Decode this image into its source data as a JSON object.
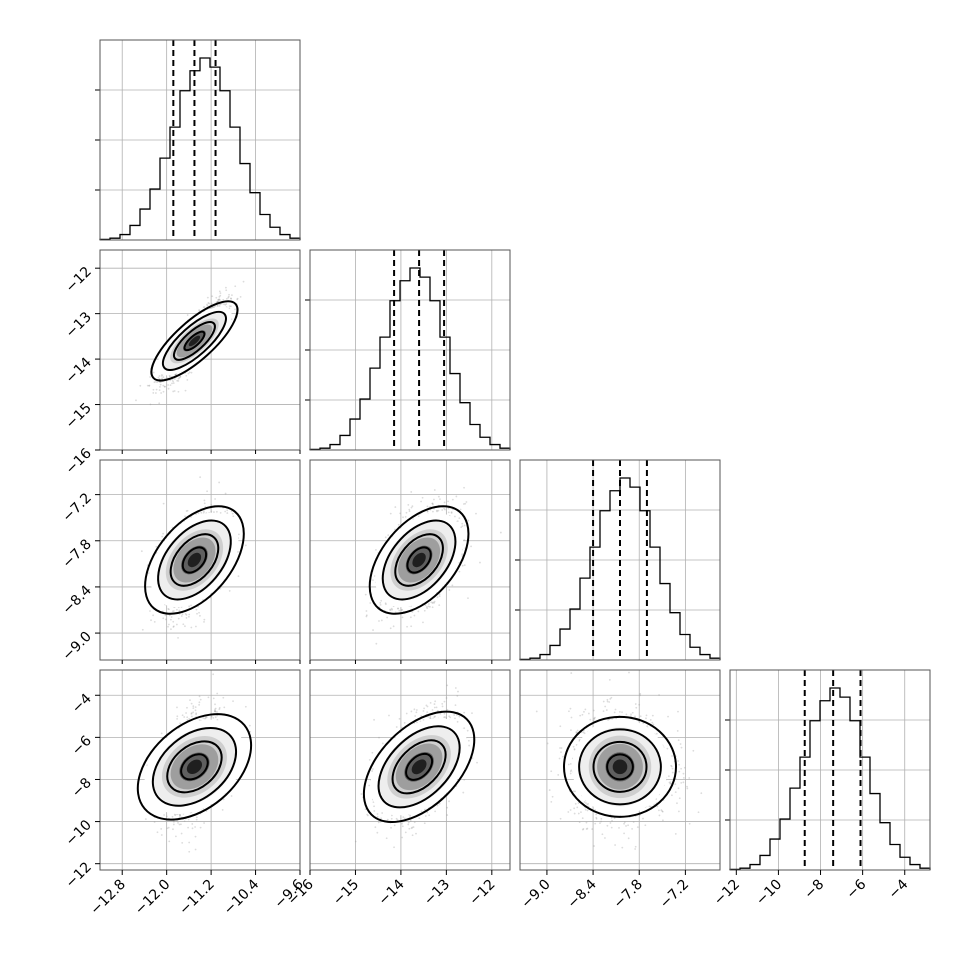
{
  "chart_data": {
    "type": "corner",
    "title": "",
    "parameters": [
      {
        "index": 0,
        "mean": -11.5,
        "sd": 0.28,
        "range": [
          -13.2,
          -9.6
        ],
        "ticks": [
          "-12.8",
          "-12.0",
          "-11.2",
          "-10.4",
          "-9.6"
        ],
        "tick_values": [
          -12.8,
          -12.0,
          -11.2,
          -10.4,
          -9.6
        ],
        "quantiles": {
          "q16": -11.88,
          "q50": -11.5,
          "q84": -11.12
        },
        "histogram": [
          0.003,
          0.01,
          0.03,
          0.08,
          0.17,
          0.28,
          0.45,
          0.62,
          0.82,
          0.93,
          1.0,
          0.95,
          0.82,
          0.62,
          0.42,
          0.26,
          0.14,
          0.07,
          0.03,
          0.01
        ]
      },
      {
        "index": 1,
        "mean": -13.6,
        "sd": 0.42,
        "range": [
          -16.0,
          -11.6
        ],
        "ticks": [
          "-16",
          "-15",
          "-14",
          "-13",
          "-12"
        ],
        "tick_values": [
          -16,
          -15,
          -14,
          -13,
          -12
        ],
        "quantiles": {
          "q16": -14.15,
          "q50": -13.6,
          "q84": -13.05
        },
        "histogram": [
          0.003,
          0.01,
          0.03,
          0.08,
          0.17,
          0.28,
          0.45,
          0.62,
          0.82,
          0.93,
          1.0,
          0.95,
          0.82,
          0.62,
          0.42,
          0.26,
          0.14,
          0.07,
          0.03,
          0.01
        ]
      },
      {
        "index": 2,
        "mean": -8.05,
        "sd": 0.32,
        "range": [
          -9.35,
          -6.75
        ],
        "ticks": [
          "-9.0",
          "-8.4",
          "-7.8",
          "-7.2"
        ],
        "tick_values": [
          -9.0,
          -8.4,
          -7.8,
          -7.2
        ],
        "quantiles": {
          "q16": -8.4,
          "q50": -8.05,
          "q84": -7.7
        },
        "histogram": [
          0.003,
          0.01,
          0.03,
          0.08,
          0.17,
          0.28,
          0.45,
          0.62,
          0.82,
          0.93,
          1.0,
          0.95,
          0.82,
          0.62,
          0.42,
          0.26,
          0.14,
          0.07,
          0.03,
          0.01
        ]
      },
      {
        "index": 3,
        "mean": -7.4,
        "sd": 1.25,
        "range": [
          -12.3,
          -2.8
        ],
        "ticks": [
          "-12",
          "-10",
          "-8",
          "-6",
          "-4"
        ],
        "tick_values": [
          -12,
          -10,
          -8,
          -6,
          -4
        ],
        "quantiles": {
          "q16": -8.75,
          "q50": -7.4,
          "q84": -6.1
        },
        "histogram": [
          0.003,
          0.01,
          0.03,
          0.08,
          0.17,
          0.28,
          0.45,
          0.62,
          0.82,
          0.93,
          1.0,
          0.95,
          0.82,
          0.62,
          0.42,
          0.26,
          0.14,
          0.07,
          0.03,
          0.01
        ]
      }
    ],
    "pairs": [
      {
        "row": 1,
        "col": 0,
        "correlation": 0.85,
        "ellipse_tilt_deg": 42
      },
      {
        "row": 2,
        "col": 0,
        "correlation": 0.45,
        "ellipse_tilt_deg": 50
      },
      {
        "row": 2,
        "col": 1,
        "correlation": 0.45,
        "ellipse_tilt_deg": 50
      },
      {
        "row": 3,
        "col": 0,
        "correlation": 0.35,
        "ellipse_tilt_deg": 40
      },
      {
        "row": 3,
        "col": 1,
        "correlation": 0.45,
        "ellipse_tilt_deg": 45
      },
      {
        "row": 3,
        "col": 2,
        "correlation": 0.0,
        "ellipse_tilt_deg": 0
      }
    ],
    "contour_levels_sigma": [
      0.5,
      1.0,
      1.5,
      2.0
    ],
    "grid": true,
    "legend": "none"
  }
}
